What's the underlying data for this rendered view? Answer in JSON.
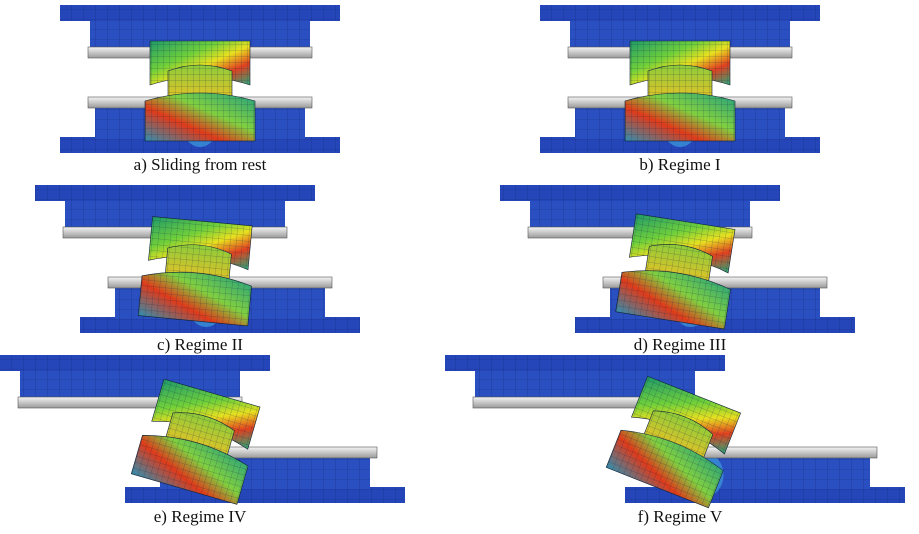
{
  "figure": {
    "panels": [
      {
        "caption": "a) Sliding from rest"
      },
      {
        "caption": "b) Regime I"
      },
      {
        "caption": "c) Regime II"
      },
      {
        "caption": "d) Regime III"
      },
      {
        "caption": "e) Regime IV"
      },
      {
        "caption": "f) Regime V"
      }
    ]
  }
}
